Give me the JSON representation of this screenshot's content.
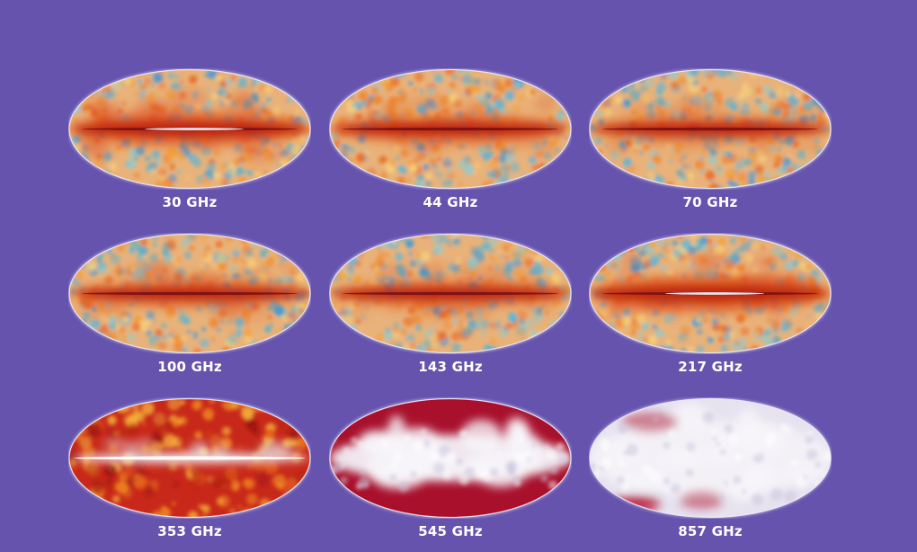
{
  "maps": [
    {
      "label": "30 GHz",
      "style": "cmb",
      "band_color": "#b81a10",
      "band_strength": 0.85
    },
    {
      "label": "44 GHz",
      "style": "cmb",
      "band_color": "#b81a10",
      "band_strength": 0.65
    },
    {
      "label": "70 GHz",
      "style": "cmb",
      "band_color": "#b81a10",
      "band_strength": 0.55
    },
    {
      "label": "100 GHz",
      "style": "cmb",
      "band_color": "#b81a10",
      "band_strength": 0.6
    },
    {
      "label": "143 GHz",
      "style": "cmb",
      "band_color": "#b81a10",
      "band_strength": 0.6
    },
    {
      "label": "217 GHz",
      "style": "cmb",
      "band_color": "#b81a10",
      "band_strength": 0.95
    },
    {
      "label": "353 GHz",
      "style": "dust",
      "band_color": "#d23a0c",
      "band_strength": 1.0
    },
    {
      "label": "545 GHz",
      "style": "dust-white",
      "band_color": "#a8102c",
      "band_strength": 1.0
    },
    {
      "label": "857 GHz",
      "style": "dust-white-light",
      "band_color": "#a8102c",
      "band_strength": 1.0
    }
  ],
  "colors": {
    "background": "#6653ad",
    "caption": "#ffffff",
    "cmb_base": "#e9b27a",
    "cmb_cold": "#4aa3d8",
    "cmb_warm": "#f0a43c",
    "dust_base": "#c8281a",
    "white_core": "#f3f1f7"
  }
}
